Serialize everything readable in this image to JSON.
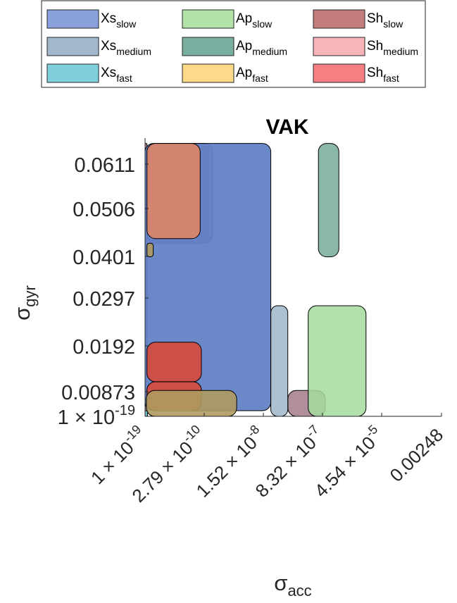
{
  "chart_data": {
    "type": "area",
    "title": "VAK",
    "xlabel": {
      "base": "σ",
      "sub": "acc"
    },
    "ylabel": {
      "base": "σ",
      "sub": "gyr"
    },
    "x_axis_scale": "log",
    "x_ticks": [
      "1 × 10^-19",
      "2.79 × 10^-10",
      "1.52 × 10^-8",
      "8.32 × 10^-7",
      "4.54 × 10^-5",
      "0.00248"
    ],
    "y_ticks": [
      "1 × 10^-19",
      "0.00873",
      "0.0192",
      "0.0297",
      "0.0401",
      "0.0506",
      "0.0611"
    ],
    "y_range": [
      0,
      0.07
    ],
    "grid": false,
    "legend_position": "top",
    "legend": [
      {
        "base": "Xs",
        "sub": "slow",
        "color": "#8aa0dc"
      },
      {
        "base": "Ap",
        "sub": "slow",
        "color": "#b1e3a8"
      },
      {
        "base": "Sh",
        "sub": "slow",
        "color": "#c27c7c"
      },
      {
        "base": "Xs",
        "sub": "medium",
        "color": "#a1b7cc"
      },
      {
        "base": "Ap",
        "sub": "medium",
        "color": "#79aea0"
      },
      {
        "base": "Sh",
        "sub": "medium",
        "color": "#f7b5ba"
      },
      {
        "base": "Xs",
        "sub": "fast",
        "color": "#7fd0dc"
      },
      {
        "base": "Ap",
        "sub": "fast",
        "color": "#fdd98a"
      },
      {
        "base": "Sh",
        "sub": "fast",
        "color": "#f87f81"
      }
    ],
    "series": [
      {
        "name": "Xs_slow",
        "color": "#6382c6",
        "regions": [
          {
            "x": [
              -19,
              -7.6
            ],
            "y": [
              0.002,
              0.066
            ]
          }
        ]
      },
      {
        "name": "Xs_medium",
        "color": "#9fb6c8",
        "regions": [
          {
            "x": [
              -7.6,
              -7.1
            ],
            "y": [
              0.0,
              0.028
            ]
          }
        ]
      },
      {
        "name": "Xs_fast",
        "color": "#6fc8d6",
        "regions": [
          {
            "x": [
              -19,
              -18.6
            ],
            "y": [
              0.0,
              0.002
            ]
          }
        ]
      },
      {
        "name": "Ap_slow",
        "color": "#a6dca0",
        "regions": [
          {
            "x": [
              -6.5,
              -4.8
            ],
            "y": [
              0.0,
              0.028
            ]
          }
        ]
      },
      {
        "name": "Ap_medium",
        "color": "#74aa9a",
        "regions": [
          {
            "x": [
              -6.2,
              -5.6
            ],
            "y": [
              0.04,
              0.066
            ]
          }
        ]
      },
      {
        "name": "Ap_fast",
        "color": "#b09a5e",
        "regions": [
          {
            "x": [
              -18.8,
              -8.6
            ],
            "y": [
              0.0,
              0.009
            ]
          },
          {
            "x": [
              -18.7,
              -17.7
            ],
            "y": [
              0.04,
              0.043
            ]
          }
        ]
      },
      {
        "name": "Sh_slow",
        "color": "#a88290",
        "regions": [
          {
            "x": [
              -19,
              -18.7
            ],
            "y": [
              0.0,
              0.066
            ]
          },
          {
            "x": [
              -18.7,
              -9.3
            ],
            "y": [
              0.043,
              0.066
            ]
          },
          {
            "x": [
              -7.1,
              -6.0
            ],
            "y": [
              0.0,
              0.009
            ]
          }
        ]
      },
      {
        "name": "Sh_medium",
        "color": "#d8846c",
        "regions": [
          {
            "x": [
              -18.7,
              -10.2
            ],
            "y": [
              0.044,
              0.066
            ]
          }
        ]
      },
      {
        "name": "Sh_fast",
        "color": "#d84a3a",
        "regions": [
          {
            "x": [
              -18.7,
              -10.0
            ],
            "y": [
              0.002,
              0.011
            ]
          },
          {
            "x": [
              -18.7,
              -10.0
            ],
            "y": [
              0.011,
              0.02
            ]
          }
        ]
      }
    ]
  }
}
